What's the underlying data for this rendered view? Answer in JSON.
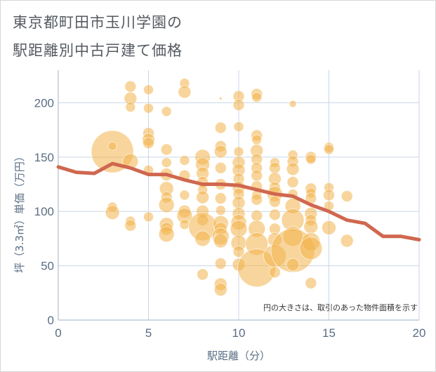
{
  "title_line1": "東京都町田市玉川学園の",
  "title_line2": "駅距離別中古戸建て価格",
  "chart_data": {
    "type": "scatter",
    "title": "東京都町田市玉川学園の駅距離別中古戸建て価格",
    "xlabel": "駅距離（分）",
    "ylabel": "坪（3.3㎡）単価（万円）",
    "xlim": [
      0,
      20
    ],
    "ylim": [
      0,
      230
    ],
    "x_ticks": [
      "0",
      "5",
      "10",
      "15",
      "20"
    ],
    "y_ticks": [
      "0",
      "50",
      "100",
      "150",
      "200"
    ],
    "grid": true,
    "note": "円の大きさは、取引のあった物件面積を示す",
    "colors": {
      "bubble": "#f2b34a",
      "line": "#d0674f",
      "grid": "#c9d6e6"
    },
    "bubbles": [
      {
        "x": 3,
        "y": 155,
        "s": 30
      },
      {
        "x": 3,
        "y": 160,
        "s": 6
      },
      {
        "x": 3,
        "y": 104,
        "s": 7
      },
      {
        "x": 3,
        "y": 99,
        "s": 10
      },
      {
        "x": 4,
        "y": 215,
        "s": 8
      },
      {
        "x": 4,
        "y": 204,
        "s": 9
      },
      {
        "x": 4,
        "y": 196,
        "s": 7
      },
      {
        "x": 4,
        "y": 146,
        "s": 11
      },
      {
        "x": 4,
        "y": 91,
        "s": 7
      },
      {
        "x": 4,
        "y": 87,
        "s": 8
      },
      {
        "x": 5,
        "y": 212,
        "s": 7
      },
      {
        "x": 5,
        "y": 195,
        "s": 7
      },
      {
        "x": 5,
        "y": 172,
        "s": 8
      },
      {
        "x": 5,
        "y": 166,
        "s": 9
      },
      {
        "x": 5,
        "y": 163,
        "s": 8
      },
      {
        "x": 5,
        "y": 138,
        "s": 7
      },
      {
        "x": 5,
        "y": 95,
        "s": 7
      },
      {
        "x": 6,
        "y": 192,
        "s": 7
      },
      {
        "x": 6,
        "y": 157,
        "s": 8
      },
      {
        "x": 6,
        "y": 145,
        "s": 7
      },
      {
        "x": 6,
        "y": 134,
        "s": 9
      },
      {
        "x": 6,
        "y": 121,
        "s": 10
      },
      {
        "x": 6,
        "y": 113,
        "s": 8
      },
      {
        "x": 6,
        "y": 106,
        "s": 11
      },
      {
        "x": 6,
        "y": 88,
        "s": 10
      },
      {
        "x": 6,
        "y": 84,
        "s": 9
      },
      {
        "x": 6,
        "y": 79,
        "s": 11
      },
      {
        "x": 7,
        "y": 218,
        "s": 7
      },
      {
        "x": 7,
        "y": 210,
        "s": 9
      },
      {
        "x": 7,
        "y": 147,
        "s": 7
      },
      {
        "x": 7,
        "y": 133,
        "s": 8
      },
      {
        "x": 7,
        "y": 115,
        "s": 7
      },
      {
        "x": 7,
        "y": 100,
        "s": 9
      },
      {
        "x": 7,
        "y": 96,
        "s": 11
      },
      {
        "x": 7,
        "y": 88,
        "s": 7
      },
      {
        "x": 8,
        "y": 150,
        "s": 11
      },
      {
        "x": 8,
        "y": 143,
        "s": 10
      },
      {
        "x": 8,
        "y": 135,
        "s": 9
      },
      {
        "x": 8,
        "y": 127,
        "s": 8
      },
      {
        "x": 8,
        "y": 120,
        "s": 7
      },
      {
        "x": 8,
        "y": 113,
        "s": 9
      },
      {
        "x": 8,
        "y": 100,
        "s": 9
      },
      {
        "x": 8,
        "y": 92,
        "s": 8
      },
      {
        "x": 8,
        "y": 86,
        "s": 20
      },
      {
        "x": 8,
        "y": 75,
        "s": 11
      },
      {
        "x": 8,
        "y": 42,
        "s": 8
      },
      {
        "x": 9,
        "y": 204,
        "s": 2
      },
      {
        "x": 9,
        "y": 177,
        "s": 8
      },
      {
        "x": 9,
        "y": 160,
        "s": 8
      },
      {
        "x": 9,
        "y": 155,
        "s": 9
      },
      {
        "x": 9,
        "y": 140,
        "s": 8
      },
      {
        "x": 9,
        "y": 125,
        "s": 8
      },
      {
        "x": 9,
        "y": 112,
        "s": 8
      },
      {
        "x": 9,
        "y": 101,
        "s": 7
      },
      {
        "x": 9,
        "y": 89,
        "s": 11
      },
      {
        "x": 9,
        "y": 84,
        "s": 9
      },
      {
        "x": 9,
        "y": 77,
        "s": 12
      },
      {
        "x": 9,
        "y": 73,
        "s": 10
      },
      {
        "x": 9,
        "y": 52,
        "s": 8
      },
      {
        "x": 9,
        "y": 33,
        "s": 9
      },
      {
        "x": 9,
        "y": 28,
        "s": 9
      },
      {
        "x": 10,
        "y": 206,
        "s": 8
      },
      {
        "x": 10,
        "y": 198,
        "s": 8
      },
      {
        "x": 10,
        "y": 178,
        "s": 7
      },
      {
        "x": 10,
        "y": 155,
        "s": 7
      },
      {
        "x": 10,
        "y": 145,
        "s": 9
      },
      {
        "x": 10,
        "y": 138,
        "s": 9
      },
      {
        "x": 10,
        "y": 130,
        "s": 8
      },
      {
        "x": 10,
        "y": 122,
        "s": 9
      },
      {
        "x": 10,
        "y": 116,
        "s": 8
      },
      {
        "x": 10,
        "y": 108,
        "s": 9
      },
      {
        "x": 10,
        "y": 98,
        "s": 9
      },
      {
        "x": 10,
        "y": 90,
        "s": 11
      },
      {
        "x": 10,
        "y": 84,
        "s": 12
      },
      {
        "x": 10,
        "y": 71,
        "s": 11
      },
      {
        "x": 10,
        "y": 63,
        "s": 8
      },
      {
        "x": 10,
        "y": 51,
        "s": 9
      },
      {
        "x": 11,
        "y": 208,
        "s": 8
      },
      {
        "x": 11,
        "y": 205,
        "s": 7
      },
      {
        "x": 11,
        "y": 170,
        "s": 8
      },
      {
        "x": 11,
        "y": 166,
        "s": 7
      },
      {
        "x": 11,
        "y": 156,
        "s": 9
      },
      {
        "x": 11,
        "y": 148,
        "s": 8
      },
      {
        "x": 11,
        "y": 140,
        "s": 8
      },
      {
        "x": 11,
        "y": 133,
        "s": 8
      },
      {
        "x": 11,
        "y": 123,
        "s": 8
      },
      {
        "x": 11,
        "y": 115,
        "s": 7
      },
      {
        "x": 11,
        "y": 111,
        "s": 8
      },
      {
        "x": 11,
        "y": 96,
        "s": 8
      },
      {
        "x": 11,
        "y": 84,
        "s": 12
      },
      {
        "x": 11,
        "y": 70,
        "s": 16
      },
      {
        "x": 11,
        "y": 48,
        "s": 27
      },
      {
        "x": 12,
        "y": 145,
        "s": 7
      },
      {
        "x": 12,
        "y": 140,
        "s": 8
      },
      {
        "x": 12,
        "y": 130,
        "s": 9
      },
      {
        "x": 12,
        "y": 122,
        "s": 8
      },
      {
        "x": 12,
        "y": 116,
        "s": 11
      },
      {
        "x": 12,
        "y": 109,
        "s": 8
      },
      {
        "x": 12,
        "y": 97,
        "s": 8
      },
      {
        "x": 12,
        "y": 84,
        "s": 8
      },
      {
        "x": 12,
        "y": 74,
        "s": 10
      },
      {
        "x": 12,
        "y": 59,
        "s": 16
      },
      {
        "x": 12,
        "y": 44,
        "s": 8
      },
      {
        "x": 13,
        "y": 199,
        "s": 5
      },
      {
        "x": 13,
        "y": 152,
        "s": 7
      },
      {
        "x": 13,
        "y": 146,
        "s": 8
      },
      {
        "x": 13,
        "y": 139,
        "s": 9
      },
      {
        "x": 13,
        "y": 127,
        "s": 8
      },
      {
        "x": 13,
        "y": 116,
        "s": 7
      },
      {
        "x": 13,
        "y": 105,
        "s": 11
      },
      {
        "x": 13,
        "y": 92,
        "s": 16
      },
      {
        "x": 13,
        "y": 77,
        "s": 14
      },
      {
        "x": 13,
        "y": 64,
        "s": 31
      },
      {
        "x": 13,
        "y": 51,
        "s": 9
      },
      {
        "x": 14,
        "y": 150,
        "s": 8
      },
      {
        "x": 14,
        "y": 148,
        "s": 7
      },
      {
        "x": 14,
        "y": 121,
        "s": 8
      },
      {
        "x": 14,
        "y": 117,
        "s": 7
      },
      {
        "x": 14,
        "y": 112,
        "s": 8
      },
      {
        "x": 14,
        "y": 98,
        "s": 9
      },
      {
        "x": 14,
        "y": 92,
        "s": 8
      },
      {
        "x": 14,
        "y": 86,
        "s": 10
      },
      {
        "x": 14,
        "y": 72,
        "s": 13
      },
      {
        "x": 14,
        "y": 66,
        "s": 16
      },
      {
        "x": 14,
        "y": 34,
        "s": 8
      },
      {
        "x": 15,
        "y": 159,
        "s": 7
      },
      {
        "x": 15,
        "y": 157,
        "s": 7
      },
      {
        "x": 15,
        "y": 122,
        "s": 7
      },
      {
        "x": 15,
        "y": 115,
        "s": 8
      },
      {
        "x": 15,
        "y": 105,
        "s": 7
      },
      {
        "x": 15,
        "y": 85,
        "s": 10
      },
      {
        "x": 16,
        "y": 114,
        "s": 8
      },
      {
        "x": 16,
        "y": 73,
        "s": 9
      }
    ],
    "line": [
      {
        "x": 0,
        "y": 141
      },
      {
        "x": 1,
        "y": 136
      },
      {
        "x": 2,
        "y": 135
      },
      {
        "x": 3,
        "y": 144
      },
      {
        "x": 4,
        "y": 140
      },
      {
        "x": 5,
        "y": 134
      },
      {
        "x": 6,
        "y": 134
      },
      {
        "x": 7,
        "y": 129
      },
      {
        "x": 8,
        "y": 125
      },
      {
        "x": 9,
        "y": 125
      },
      {
        "x": 10,
        "y": 124
      },
      {
        "x": 11,
        "y": 120
      },
      {
        "x": 12,
        "y": 116
      },
      {
        "x": 13,
        "y": 114
      },
      {
        "x": 14,
        "y": 106
      },
      {
        "x": 15,
        "y": 100
      },
      {
        "x": 16,
        "y": 92
      },
      {
        "x": 17,
        "y": 89
      },
      {
        "x": 18,
        "y": 77
      },
      {
        "x": 19,
        "y": 77
      },
      {
        "x": 20,
        "y": 74
      }
    ]
  }
}
